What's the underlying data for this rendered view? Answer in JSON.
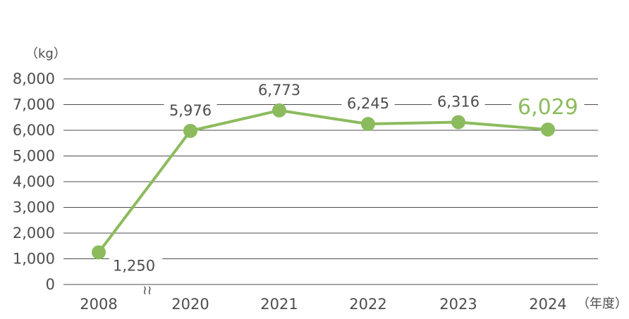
{
  "chart_data": {
    "type": "line",
    "x": [
      "2008",
      "2020",
      "2021",
      "2022",
      "2023",
      "2024"
    ],
    "values": [
      1250,
      5976,
      6773,
      6245,
      6316,
      6029
    ],
    "value_labels": [
      "1,250",
      "5,976",
      "6,773",
      "6,245",
      "6,316",
      "6,029"
    ],
    "y_ticks": [
      "0",
      "1,000",
      "2,000",
      "3,000",
      "4,000",
      "5,000",
      "6,000",
      "7,000",
      "8,000"
    ],
    "ylim": [
      0,
      8000
    ],
    "y_unit": "（kg）",
    "x_unit": "（年度）",
    "axis_break": "≀≀",
    "grid": true,
    "highlight_last": true,
    "colors": {
      "line": "#8cbb5e",
      "highlight_text": "#8cbb5e",
      "grid": "#4d4d4d",
      "text": "#4d4d4d"
    }
  }
}
